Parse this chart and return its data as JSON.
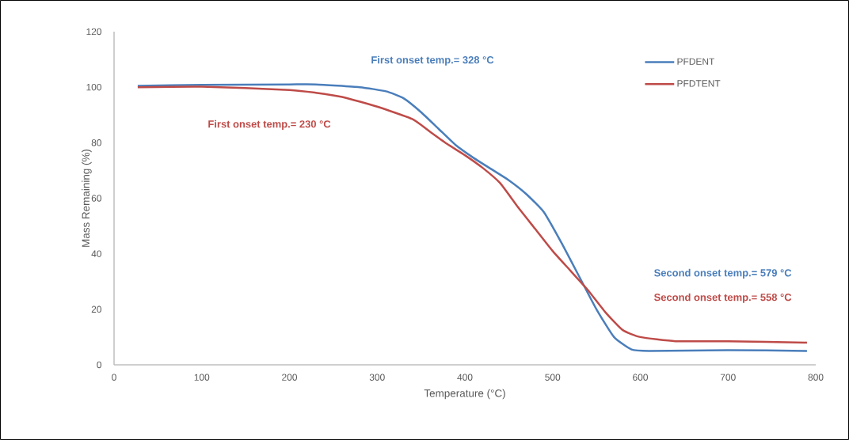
{
  "chart_data": {
    "type": "line",
    "xlabel": "Temperature (°C)",
    "ylabel": "Mass Remaining (%)",
    "xlim": [
      0,
      800
    ],
    "xticks": [
      0,
      100,
      200,
      300,
      400,
      500,
      600,
      700,
      800
    ],
    "ylim": [
      0,
      120
    ],
    "yticks": [
      0,
      20,
      40,
      60,
      80,
      100,
      120
    ],
    "grid": false,
    "legend": "top right",
    "marker": "none",
    "line_style": "solid",
    "series": [
      {
        "name": "PFDENT",
        "color": "#4a7ebb",
        "x": [
          27,
          100,
          200,
          230,
          280,
          310,
          330,
          350,
          370,
          390,
          410,
          430,
          450,
          470,
          490,
          510,
          530,
          550,
          570,
          590,
          610,
          700,
          790
        ],
        "values": [
          100.5,
          100.8,
          101,
          101,
          100,
          98.5,
          96,
          91,
          85,
          79,
          74.5,
          70.5,
          66.5,
          61.5,
          55,
          44,
          32,
          20,
          10,
          5.5,
          5,
          5.3,
          5
        ]
      },
      {
        "name": "PFDTENT",
        "color": "#be4b48",
        "x": [
          27,
          100,
          200,
          230,
          260,
          300,
          340,
          360,
          380,
          400,
          420,
          440,
          460,
          480,
          500,
          520,
          540,
          560,
          580,
          600,
          640,
          700,
          790
        ],
        "values": [
          100,
          100.2,
          99,
          98,
          96.5,
          93,
          88.5,
          84,
          79.5,
          75.5,
          71,
          65.5,
          57,
          49,
          41,
          34,
          27,
          19,
          12.5,
          10,
          8.5,
          8.5,
          8
        ]
      }
    ],
    "annotations": [
      "First onset temp.= 328 °C",
      "First onset temp.= 230 °C",
      "Second onset temp.= 579 °C",
      "Second onset temp.= 558 °C"
    ]
  }
}
